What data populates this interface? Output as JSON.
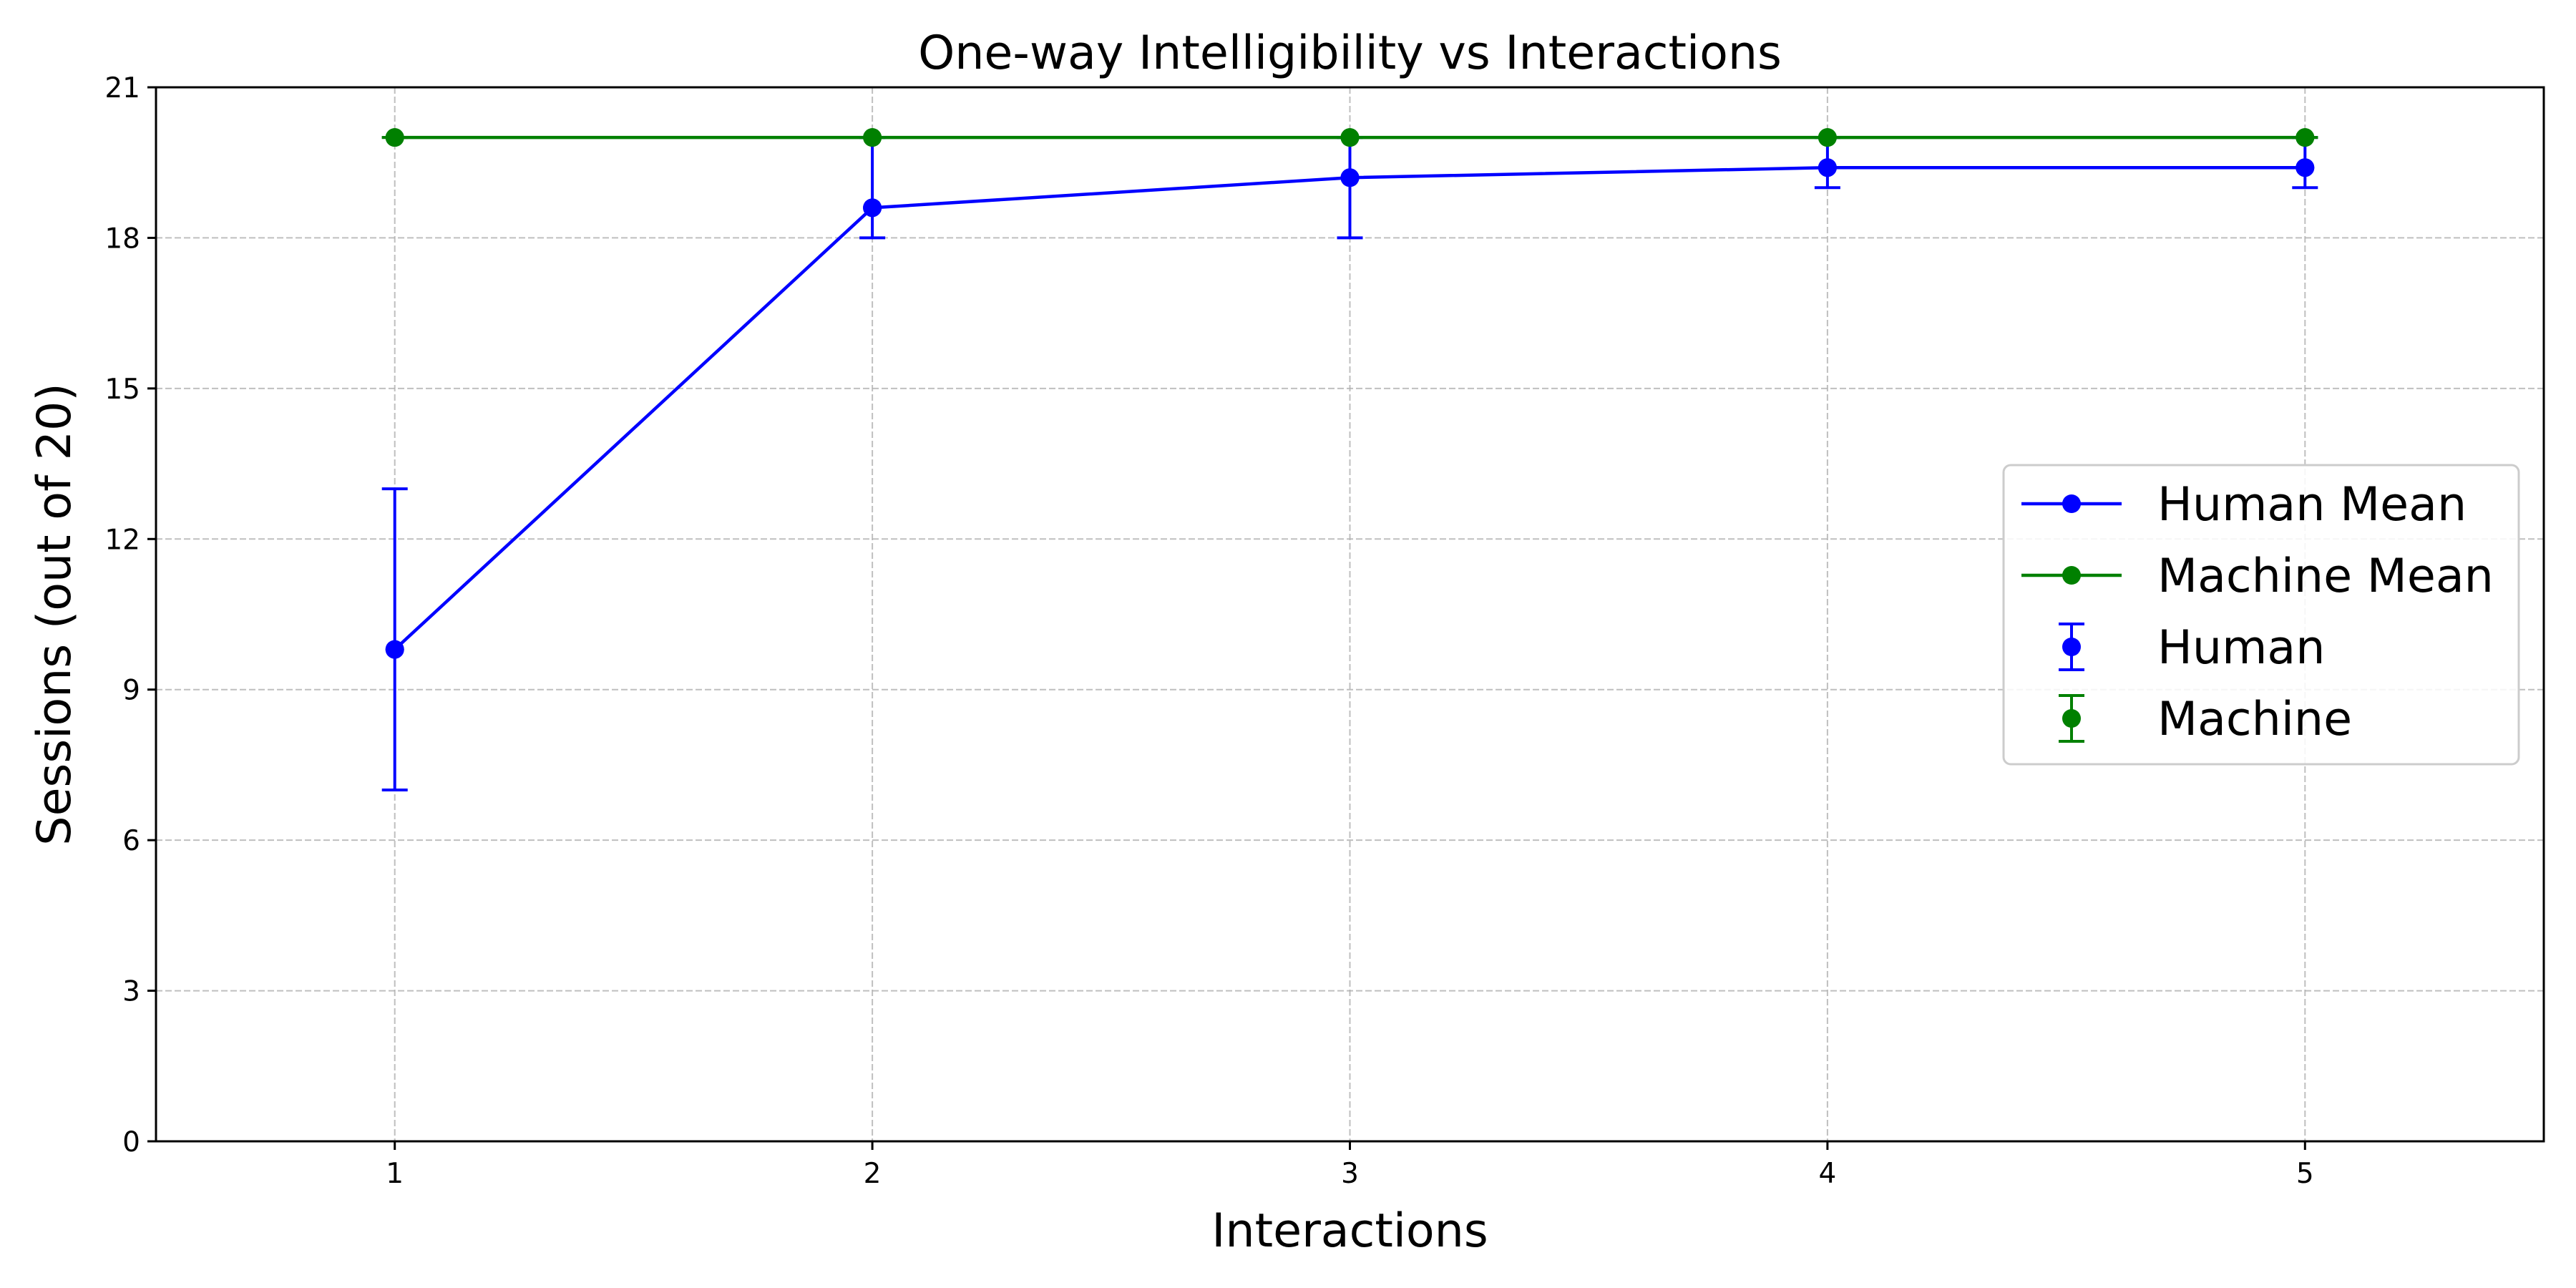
{
  "chart_data": {
    "type": "line",
    "title": "One-way Intelligibility vs Interactions",
    "xlabel": "Interactions",
    "ylabel": "Sessions (out of 20)",
    "xlim": [
      0.5,
      5.5
    ],
    "ylim": [
      0,
      21
    ],
    "x_ticks": [
      1,
      2,
      3,
      4,
      5
    ],
    "y_ticks": [
      0,
      3,
      6,
      9,
      12,
      15,
      18,
      21
    ],
    "grid": true,
    "legend_position": "center-right",
    "x": [
      1,
      2,
      3,
      4,
      5
    ],
    "series": [
      {
        "name": "Human Mean",
        "kind": "line",
        "color": "#0000ff",
        "values": [
          9.8,
          18.6,
          19.2,
          19.4,
          19.4
        ]
      },
      {
        "name": "Machine Mean",
        "kind": "line",
        "color": "#008000",
        "values": [
          20,
          20,
          20,
          20,
          20
        ]
      },
      {
        "name": "Human",
        "kind": "errorbar",
        "color": "#0000ff",
        "values": [
          9.8,
          18.6,
          19.2,
          19.4,
          19.4
        ],
        "lower": [
          7,
          18,
          18,
          19,
          19
        ],
        "upper": [
          13,
          20,
          20,
          20,
          20
        ]
      },
      {
        "name": "Machine",
        "kind": "errorbar",
        "color": "#008000",
        "values": [
          20,
          20,
          20,
          20,
          20
        ],
        "lower": [
          20,
          20,
          20,
          20,
          20
        ],
        "upper": [
          20,
          20,
          20,
          20,
          20
        ]
      }
    ]
  }
}
